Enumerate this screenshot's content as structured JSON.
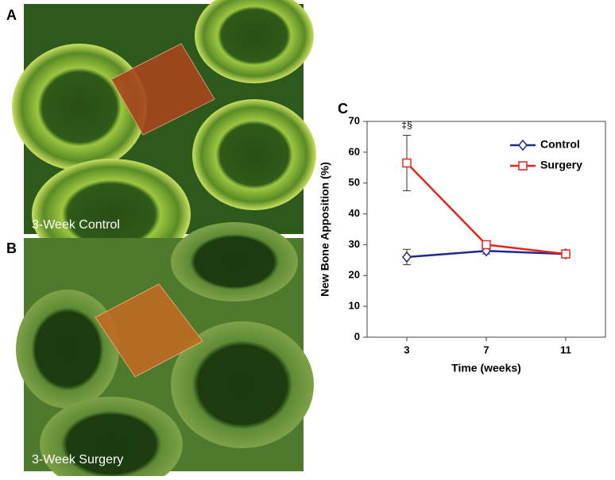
{
  "panels": [
    {
      "label": "A",
      "caption": "3-Week Control"
    },
    {
      "label": "B",
      "caption": "3-Week Surgery"
    }
  ],
  "chart_data": {
    "type": "line",
    "panel_label": "C",
    "x_label": "Time (weeks)",
    "y_label": "New Bone Apposition (%)",
    "x": [
      3,
      7,
      11
    ],
    "xlim": [
      1,
      13
    ],
    "xticks": [
      3,
      7,
      11
    ],
    "ylim": [
      0,
      70
    ],
    "yticks": [
      0,
      10,
      20,
      30,
      40,
      50,
      60,
      70
    ],
    "legend": "upper right",
    "annotation": "‡§",
    "series": [
      {
        "name": "Control",
        "color": "#1c2a8c",
        "marker": "diamond",
        "values": [
          26,
          28,
          27
        ],
        "errors": [
          2.5,
          1,
          1
        ]
      },
      {
        "name": "Surgery",
        "color": "#e0261e",
        "marker": "square",
        "values": [
          56.5,
          30,
          27
        ],
        "errors": [
          9,
          1.2,
          0.8
        ]
      }
    ]
  }
}
